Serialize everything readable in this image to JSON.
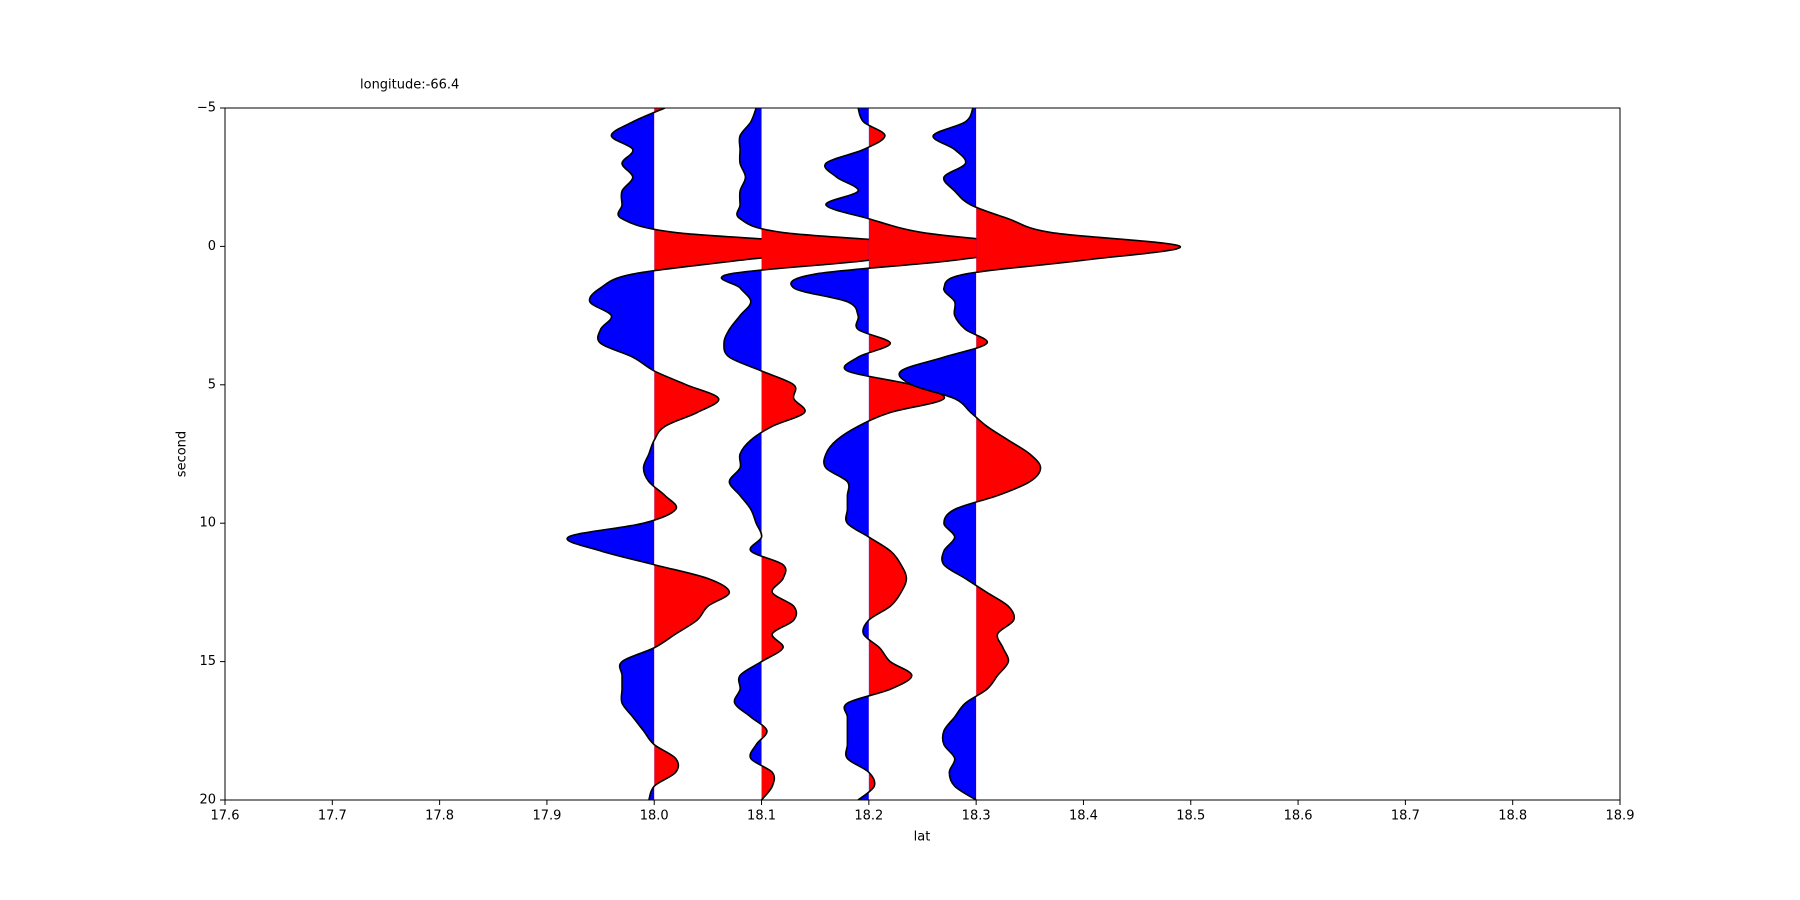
{
  "chart_data": {
    "type": "wiggle",
    "title": "longitude:-66.4",
    "x_label": "lat",
    "y_label": "second",
    "xlim": [
      17.6,
      18.9
    ],
    "xticks": [
      17.6,
      17.7,
      17.8,
      17.9,
      {
        "value": 18.0,
        "label": "18.0"
      },
      18.1,
      18.2,
      18.3,
      18.4,
      18.5,
      18.6,
      18.7,
      18.8,
      18.9
    ],
    "ylim": [
      -5,
      20
    ],
    "y_inverted": true,
    "yticks": [
      {
        "value": -5,
        "label": "−5"
      },
      0,
      5,
      10,
      15,
      20
    ],
    "positive_color": "#ff0000",
    "negative_color": "#0000ff",
    "line_color": "#000000",
    "y": [
      -5,
      -4.5,
      -4,
      -3.5,
      -3,
      -2.5,
      -2,
      -1.5,
      -1,
      -0.5,
      0,
      0.5,
      1,
      1.5,
      2,
      2.5,
      3,
      3.5,
      4,
      4.5,
      5,
      5.5,
      6,
      6.5,
      7,
      7.5,
      8,
      8.5,
      9,
      9.5,
      10,
      10.5,
      11,
      11.5,
      12,
      12.5,
      13,
      13.5,
      14,
      14.5,
      15,
      15.5,
      16,
      16.5,
      17,
      17.5,
      18,
      18.5,
      19,
      19.5,
      20
    ],
    "series": [
      {
        "position": 18.0,
        "values": [
          0.01,
          -0.02,
          -0.04,
          -0.02,
          -0.03,
          -0.02,
          -0.03,
          -0.03,
          -0.03,
          0.02,
          0.18,
          0.08,
          -0.02,
          -0.05,
          -0.06,
          -0.04,
          -0.05,
          -0.05,
          -0.02,
          0,
          0.03,
          0.06,
          0.04,
          0.01,
          0,
          -0.005,
          -0.01,
          -0.005,
          0.01,
          0.02,
          -0.01,
          -0.08,
          -0.05,
          0,
          0.05,
          0.07,
          0.05,
          0.04,
          0.02,
          0,
          -0.03,
          -0.03,
          -0.03,
          -0.03,
          -0.02,
          -0.01,
          0,
          0.02,
          0.02,
          0,
          -0.005
        ]
      },
      {
        "position": 18.1,
        "values": [
          -0.005,
          -0.01,
          -0.02,
          -0.02,
          -0.02,
          -0.015,
          -0.02,
          -0.02,
          -0.02,
          0.02,
          0.17,
          0.1,
          -0.03,
          -0.02,
          -0.01,
          -0.02,
          -0.03,
          -0.035,
          -0.03,
          0,
          0.03,
          0.03,
          0.04,
          0.01,
          -0.01,
          -0.02,
          -0.02,
          -0.03,
          -0.02,
          -0.01,
          -0.005,
          0,
          -0.01,
          0.02,
          0.02,
          0.01,
          0.03,
          0.03,
          0.01,
          0.02,
          0,
          -0.02,
          -0.02,
          -0.025,
          -0.01,
          0.005,
          -0.005,
          -0.01,
          0.01,
          0.01,
          0
        ]
      },
      {
        "position": 18.2,
        "values": [
          -0.01,
          -0.005,
          0.015,
          -0.005,
          -0.04,
          -0.03,
          -0.01,
          -0.04,
          0,
          0.05,
          0.15,
          0.08,
          -0.05,
          -0.07,
          -0.02,
          -0.01,
          -0.01,
          0.02,
          -0.01,
          -0.02,
          0.04,
          0.07,
          0.02,
          -0.01,
          -0.03,
          -0.04,
          -0.04,
          -0.02,
          -0.02,
          -0.02,
          -0.02,
          0,
          0.02,
          0.03,
          0.035,
          0.03,
          0.02,
          0,
          -0.005,
          0.01,
          0.02,
          0.04,
          0.02,
          -0.02,
          -0.02,
          -0.02,
          -0.02,
          -0.02,
          0,
          0.005,
          -0.01
        ]
      },
      {
        "position": 18.3,
        "values": [
          -0.003,
          -0.01,
          -0.04,
          -0.02,
          -0.01,
          -0.03,
          -0.02,
          -0.005,
          0.03,
          0.07,
          0.19,
          0.1,
          -0.01,
          -0.03,
          -0.02,
          -0.02,
          -0.01,
          0.01,
          -0.03,
          -0.07,
          -0.06,
          -0.02,
          -0.005,
          0.01,
          0.03,
          0.05,
          0.06,
          0.05,
          0.02,
          -0.02,
          -0.03,
          -0.02,
          -0.03,
          -0.03,
          -0.01,
          0.01,
          0.03,
          0.035,
          0.02,
          0.025,
          0.03,
          0.02,
          0.01,
          -0.01,
          -0.02,
          -0.03,
          -0.03,
          -0.02,
          -0.025,
          -0.02,
          0
        ]
      }
    ]
  }
}
